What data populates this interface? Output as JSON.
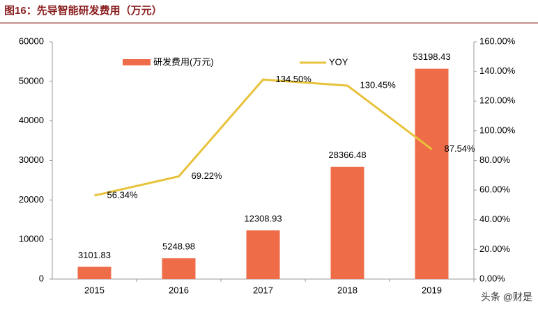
{
  "chart_data": {
    "type": "bar_line",
    "title": "图16：先导智能研发费用（万元）",
    "categories": [
      "2015",
      "2016",
      "2017",
      "2018",
      "2019"
    ],
    "series": [
      {
        "name": "研发费用(万元)",
        "type": "bar",
        "color": "#ee6c48",
        "values": [
          3101.83,
          5248.98,
          12308.93,
          28366.48,
          53198.43
        ]
      },
      {
        "name": "YOY",
        "type": "line",
        "axis": "y2",
        "color": "#e8c23a",
        "values": [
          56.34,
          69.22,
          134.5,
          130.45,
          87.54
        ],
        "value_labels": [
          "56.34%",
          "69.22%",
          "134.50%",
          "130.45%",
          "87.54%"
        ]
      }
    ],
    "ylim": [
      0,
      60000
    ],
    "yticks": [
      0,
      10000,
      20000,
      30000,
      40000,
      50000,
      60000
    ],
    "y2lim": [
      0,
      160
    ],
    "y2ticks": [
      {
        "value": 0,
        "label": "0.00%"
      },
      {
        "value": 20,
        "label": "20.00%"
      },
      {
        "value": 40,
        "label": "40.00%"
      },
      {
        "value": 60,
        "label": "60.00%"
      },
      {
        "value": 80,
        "label": "80.00%"
      },
      {
        "value": 100,
        "label": "100.00%"
      },
      {
        "value": 120,
        "label": "120.00%"
      },
      {
        "value": 140,
        "label": "140.00%"
      },
      {
        "value": 160,
        "label": "160.00%"
      }
    ],
    "watermark": "头条 @财是"
  }
}
